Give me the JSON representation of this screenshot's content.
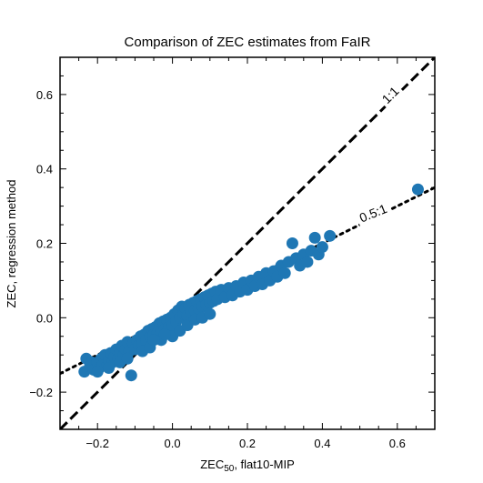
{
  "chart_data": {
    "type": "scatter",
    "title": "Comparison of ZEC estimates from FaIR",
    "xlabel_main": "ZEC",
    "xlabel_sub": "50",
    "xlabel_rest": ", flat10-MIP",
    "ylabel": "ZEC, regression method",
    "xlim": [
      -0.3,
      0.7
    ],
    "ylim": [
      -0.3,
      0.7
    ],
    "xticks": [
      -0.2,
      0.0,
      0.2,
      0.4,
      0.6
    ],
    "xtick_labels": [
      "−0.2",
      "0.0",
      "0.2",
      "0.4",
      "0.6"
    ],
    "yticks": [
      -0.2,
      0.0,
      0.2,
      0.4,
      0.6
    ],
    "ytick_labels": [
      "−0.2",
      "0.0",
      "0.2",
      "0.4",
      "0.6"
    ],
    "point_color": "#1f77b4",
    "reference_lines": [
      {
        "label": "1:1",
        "slope": 1.0,
        "style": "dashed",
        "color": "#000000"
      },
      {
        "label": "0.5:1",
        "slope": 0.5,
        "style": "dotted",
        "color": "#000000"
      }
    ],
    "points": [
      [
        -0.235,
        -0.145
      ],
      [
        -0.23,
        -0.11
      ],
      [
        -0.22,
        -0.13
      ],
      [
        -0.215,
        -0.12
      ],
      [
        -0.21,
        -0.14
      ],
      [
        -0.2,
        -0.12
      ],
      [
        -0.195,
        -0.135
      ],
      [
        -0.19,
        -0.11
      ],
      [
        -0.185,
        -0.125
      ],
      [
        -0.18,
        -0.1
      ],
      [
        -0.175,
        -0.13
      ],
      [
        -0.17,
        -0.115
      ],
      [
        -0.165,
        -0.095
      ],
      [
        -0.16,
        -0.12
      ],
      [
        -0.155,
        -0.105
      ],
      [
        -0.15,
        -0.085
      ],
      [
        -0.145,
        -0.11
      ],
      [
        -0.14,
        -0.095
      ],
      [
        -0.135,
        -0.075
      ],
      [
        -0.13,
        -0.1
      ],
      [
        -0.125,
        -0.085
      ],
      [
        -0.12,
        -0.065
      ],
      [
        -0.115,
        -0.09
      ],
      [
        -0.11,
        -0.155
      ],
      [
        -0.105,
        -0.07
      ],
      [
        -0.1,
        -0.085
      ],
      [
        -0.095,
        -0.06
      ],
      [
        -0.09,
        -0.075
      ],
      [
        -0.085,
        -0.05
      ],
      [
        -0.08,
        -0.07
      ],
      [
        -0.075,
        -0.045
      ],
      [
        -0.07,
        -0.06
      ],
      [
        -0.065,
        -0.035
      ],
      [
        -0.06,
        -0.05
      ],
      [
        -0.055,
        -0.03
      ],
      [
        -0.05,
        -0.045
      ],
      [
        -0.045,
        -0.025
      ],
      [
        -0.04,
        -0.04
      ],
      [
        -0.035,
        -0.015
      ],
      [
        -0.03,
        -0.035
      ],
      [
        -0.025,
        -0.01
      ],
      [
        -0.02,
        -0.03
      ],
      [
        -0.015,
        -0.005
      ],
      [
        -0.01,
        -0.025
      ],
      [
        -0.005,
        0.0
      ],
      [
        0.0,
        -0.02
      ],
      [
        0.005,
        0.01
      ],
      [
        0.01,
        -0.01
      ],
      [
        0.015,
        0.02
      ],
      [
        0.02,
        0.0
      ],
      [
        0.025,
        0.03
      ],
      [
        0.03,
        0.01
      ],
      [
        0.035,
        0.025
      ],
      [
        0.04,
        0.005
      ],
      [
        0.045,
        0.035
      ],
      [
        0.05,
        0.015
      ],
      [
        0.055,
        0.04
      ],
      [
        0.06,
        0.02
      ],
      [
        0.065,
        0.045
      ],
      [
        0.07,
        0.025
      ],
      [
        0.075,
        0.05
      ],
      [
        0.08,
        0.03
      ],
      [
        0.085,
        0.055
      ],
      [
        0.09,
        0.035
      ],
      [
        0.095,
        0.06
      ],
      [
        0.1,
        0.04
      ],
      [
        0.105,
        0.065
      ],
      [
        0.11,
        0.045
      ],
      [
        0.115,
        0.07
      ],
      [
        0.12,
        0.05
      ],
      [
        0.13,
        0.075
      ],
      [
        0.14,
        0.055
      ],
      [
        0.15,
        0.08
      ],
      [
        0.16,
        0.06
      ],
      [
        0.17,
        0.085
      ],
      [
        0.18,
        0.07
      ],
      [
        0.19,
        0.095
      ],
      [
        0.2,
        0.075
      ],
      [
        0.21,
        0.1
      ],
      [
        0.22,
        0.085
      ],
      [
        0.23,
        0.11
      ],
      [
        0.24,
        0.09
      ],
      [
        0.25,
        0.12
      ],
      [
        0.26,
        0.1
      ],
      [
        0.27,
        0.125
      ],
      [
        0.28,
        0.11
      ],
      [
        0.29,
        0.14
      ],
      [
        0.3,
        0.12
      ],
      [
        0.31,
        0.15
      ],
      [
        0.32,
        0.2
      ],
      [
        0.33,
        0.16
      ],
      [
        0.34,
        0.14
      ],
      [
        0.35,
        0.17
      ],
      [
        0.36,
        0.15
      ],
      [
        0.37,
        0.18
      ],
      [
        0.38,
        0.215
      ],
      [
        0.39,
        0.17
      ],
      [
        0.4,
        0.19
      ],
      [
        0.42,
        0.22
      ],
      [
        0.655,
        0.345
      ],
      [
        -0.2,
        -0.145
      ],
      [
        -0.17,
        -0.135
      ],
      [
        -0.14,
        -0.12
      ],
      [
        -0.12,
        -0.11
      ],
      [
        -0.08,
        -0.09
      ],
      [
        -0.06,
        -0.08
      ],
      [
        -0.03,
        -0.06
      ],
      [
        0.0,
        -0.05
      ],
      [
        0.02,
        -0.035
      ],
      [
        0.04,
        -0.02
      ],
      [
        -0.05,
        -0.06
      ],
      [
        -0.02,
        -0.045
      ],
      [
        0.06,
        -0.005
      ],
      [
        0.08,
        0.0
      ],
      [
        0.1,
        0.01
      ]
    ]
  }
}
